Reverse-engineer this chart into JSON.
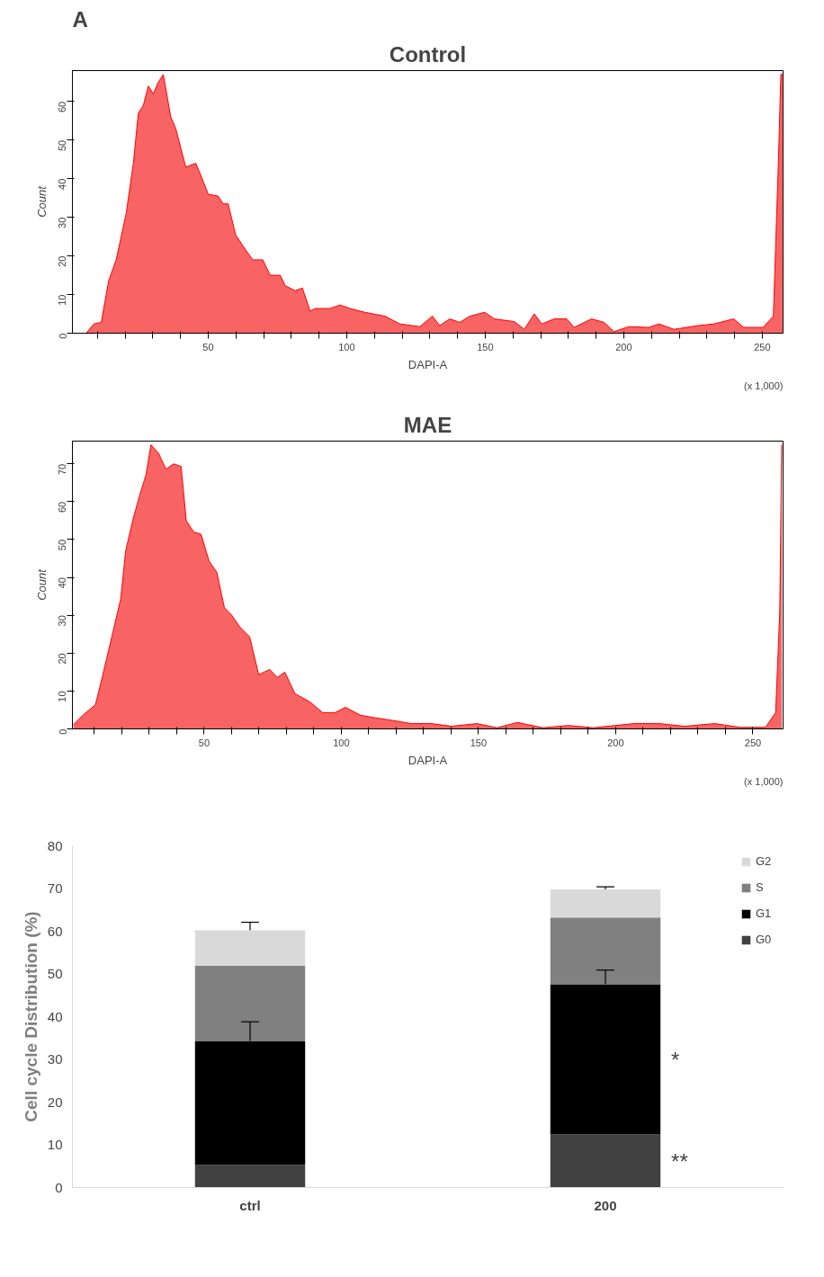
{
  "chart_data": [
    {
      "type": "area",
      "title": "Control",
      "xlabel": "DAPI-A",
      "ylabel": "Count",
      "annotations": [
        "A",
        "(x 1,000)"
      ],
      "color": "#f86464",
      "grid": false,
      "x": [
        6,
        8.7,
        11.4,
        14.1,
        16.8,
        20.4,
        23,
        24.8,
        26.6,
        28.4,
        30.2,
        32,
        33.8,
        36.5,
        38.3,
        41.9,
        45.5,
        47.3,
        50,
        53.6,
        55.4,
        57.2,
        59.9,
        63.5,
        66.1,
        69.7,
        72.4,
        76,
        77.8,
        81.4,
        84,
        86.8,
        88.6,
        94,
        97.6,
        101.2,
        106.6,
        113.8,
        119.2,
        126.4,
        130.9,
        133.6,
        137.2,
        140.8,
        144.4,
        149.8,
        153.3,
        160.5,
        164.1,
        167.7,
        170.4,
        174.9,
        179.4,
        182.1,
        188.4,
        192.9,
        196.5,
        201.9,
        209.1,
        212.7,
        218.1,
        227.1,
        232.5,
        239.7,
        243.3,
        250.3,
        254,
        255.8,
        256.7,
        257.4
      ],
      "values": [
        0,
        2.4,
        2.8,
        13.6,
        19,
        31,
        44,
        57,
        59,
        64,
        62,
        65,
        67,
        56,
        53,
        43,
        44,
        41,
        36,
        35.5,
        33.5,
        33.5,
        25.5,
        21.6,
        19,
        19,
        15,
        15,
        12.3,
        11,
        11.7,
        5.7,
        6.4,
        6.4,
        7.3,
        6.4,
        5.4,
        4.4,
        2.4,
        1.7,
        4.4,
        2,
        3.7,
        2.8,
        4.4,
        5.4,
        3.7,
        3,
        1,
        5,
        2.4,
        3.7,
        3.7,
        1.5,
        3.7,
        2.8,
        0.4,
        1.7,
        1.5,
        2.4,
        1,
        2,
        2.4,
        3.7,
        1.5,
        1.5,
        4.4,
        44,
        67,
        67
      ],
      "xlim": [
        1,
        257.5
      ],
      "ylim": [
        0,
        68
      ],
      "xticks": [
        {
          "value": 10,
          "label": null
        },
        {
          "value": 20,
          "label": null
        },
        {
          "value": 30,
          "label": null
        },
        {
          "value": 40,
          "label": null
        },
        50,
        {
          "value": 60,
          "label": null
        },
        {
          "value": 70,
          "label": null
        },
        {
          "value": 80,
          "label": null
        },
        {
          "value": 90,
          "label": null
        },
        100,
        {
          "value": 110,
          "label": null
        },
        {
          "value": 120,
          "label": null
        },
        {
          "value": 130,
          "label": null
        },
        {
          "value": 140,
          "label": null
        },
        150,
        {
          "value": 160,
          "label": null
        },
        {
          "value": 170,
          "label": null
        },
        {
          "value": 180,
          "label": null
        },
        {
          "value": 190,
          "label": null
        },
        200,
        {
          "value": 210,
          "label": null
        },
        {
          "value": 220,
          "label": null
        },
        {
          "value": 230,
          "label": null
        },
        {
          "value": 240,
          "label": null
        },
        250
      ],
      "yticks": [
        0,
        10,
        20,
        30,
        40,
        50,
        60
      ]
    },
    {
      "type": "area",
      "title": "MAE",
      "xlabel": "DAPI-A",
      "ylabel": "Count",
      "annotations": [
        "(x 1,000)"
      ],
      "color": "#f86464",
      "grid": false,
      "x": [
        2.4,
        5.8,
        10.4,
        13.1,
        16.8,
        19.6,
        21.4,
        24.2,
        27,
        28.8,
        30.6,
        33.3,
        36.1,
        38.9,
        41.6,
        43.5,
        46.2,
        48.9,
        51.8,
        54.6,
        57.4,
        60.1,
        62.9,
        66.6,
        69.9,
        73.9,
        76.7,
        79.4,
        83.1,
        88.6,
        93.2,
        97.8,
        101.5,
        107,
        112.5,
        119.9,
        125.5,
        132.8,
        140.2,
        149.4,
        156.8,
        164.2,
        173.5,
        182.7,
        191.9,
        206.7,
        215.9,
        225.1,
        236.2,
        245.4,
        254.6,
        258.3,
        259.8,
        260.5
      ],
      "values": [
        1.1,
        3.6,
        6.4,
        14.3,
        25.7,
        34.3,
        47,
        55.7,
        62.9,
        67,
        75,
        72.9,
        68.6,
        70,
        69.3,
        55,
        52,
        51.4,
        44.3,
        41.4,
        32,
        30,
        27,
        24.3,
        14.3,
        15.7,
        13.6,
        15,
        9.3,
        7.1,
        4.3,
        4.3,
        5.7,
        3.6,
        2.9,
        2.1,
        1.4,
        1.4,
        0.7,
        1.4,
        0.3,
        1.7,
        0.3,
        0.9,
        0.3,
        1.4,
        1.4,
        0.7,
        1.4,
        0.4,
        0.4,
        4.3,
        31,
        75
      ],
      "xlim": [
        2,
        261
      ],
      "ylim": [
        0,
        76
      ],
      "xticks": [
        {
          "value": 10,
          "label": null
        },
        {
          "value": 20,
          "label": null
        },
        {
          "value": 30,
          "label": null
        },
        {
          "value": 40,
          "label": null
        },
        50,
        {
          "value": 60,
          "label": null
        },
        {
          "value": 70,
          "label": null
        },
        {
          "value": 80,
          "label": null
        },
        {
          "value": 90,
          "label": null
        },
        100,
        {
          "value": 110,
          "label": null
        },
        {
          "value": 120,
          "label": null
        },
        {
          "value": 130,
          "label": null
        },
        {
          "value": 140,
          "label": null
        },
        150,
        {
          "value": 160,
          "label": null
        },
        {
          "value": 170,
          "label": null
        },
        {
          "value": 180,
          "label": null
        },
        {
          "value": 190,
          "label": null
        },
        200,
        {
          "value": 210,
          "label": null
        },
        {
          "value": 220,
          "label": null
        },
        {
          "value": 230,
          "label": null
        },
        {
          "value": 240,
          "label": null
        },
        250
      ],
      "yticks": [
        0,
        10,
        20,
        30,
        40,
        50,
        60,
        70
      ]
    },
    {
      "type": "bar",
      "stacked": true,
      "ylabel": "Cell cycle Distribution (%)",
      "categories": [
        "ctrl",
        "200"
      ],
      "legend": "top right",
      "grid": false,
      "ylim": [
        0,
        80
      ],
      "yticks": [
        0,
        10,
        20,
        30,
        40,
        50,
        60,
        70,
        80
      ],
      "annotations": [
        "*",
        "**"
      ],
      "series": [
        {
          "name": "G0",
          "color": "#404040",
          "values": [
            5.3,
            12.4
          ]
        },
        {
          "name": "G1",
          "color": "#000000",
          "values": [
            29.0,
            35.2
          ],
          "errors": [
            [
              34.3,
              38.8
            ],
            [
              47.6,
              50.9
            ]
          ]
        },
        {
          "name": "S",
          "color": "#808080",
          "values": [
            17.6,
            15.6
          ]
        },
        {
          "name": "G2",
          "color": "#d9d9d9",
          "values": [
            8.3,
            6.6
          ],
          "errors": [
            [
              60.2,
              62.1
            ],
            [
              69.8,
              70.4
            ]
          ]
        }
      ]
    }
  ]
}
